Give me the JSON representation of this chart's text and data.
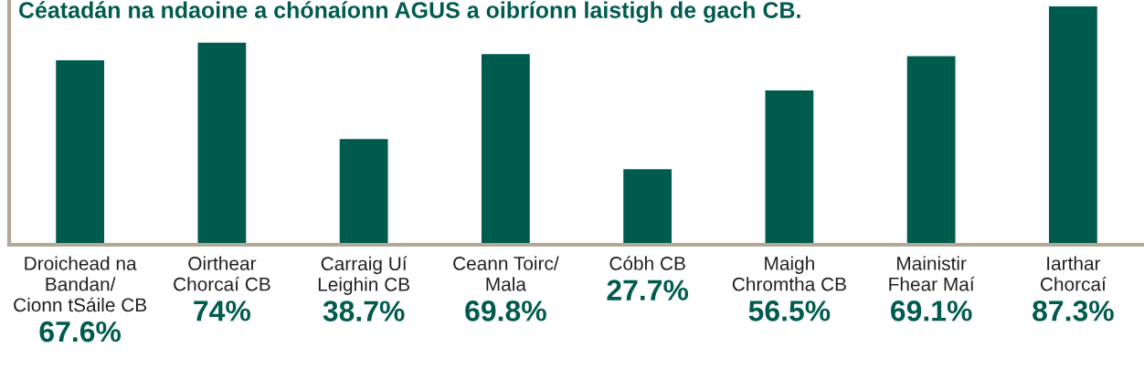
{
  "chart_data": {
    "type": "bar",
    "title": "Céatadán na ndaoine a chónaíonn AGUS a oibríonn laistigh de gach CB.",
    "categories": [
      "Droichead na\nBandan/\nCionn tSáile CB",
      "Oirthear\nChorcaí CB",
      "Carraig Uí\nLeighin CB",
      "Ceann Toirc/\nMala",
      "Cóbh CB",
      "Maigh\nChromtha CB",
      "Mainistir\nFhear Maí",
      "Iarthar\nChorcaí"
    ],
    "values": [
      67.6,
      74,
      38.7,
      69.8,
      27.7,
      56.5,
      69.1,
      87.3
    ],
    "value_labels": [
      "67.6%",
      "74%",
      "38.7%",
      "69.8%",
      "27.7%",
      "56.5%",
      "69.1%",
      "87.3%"
    ],
    "color": "#005b4f",
    "tick_labels": "x"
  }
}
